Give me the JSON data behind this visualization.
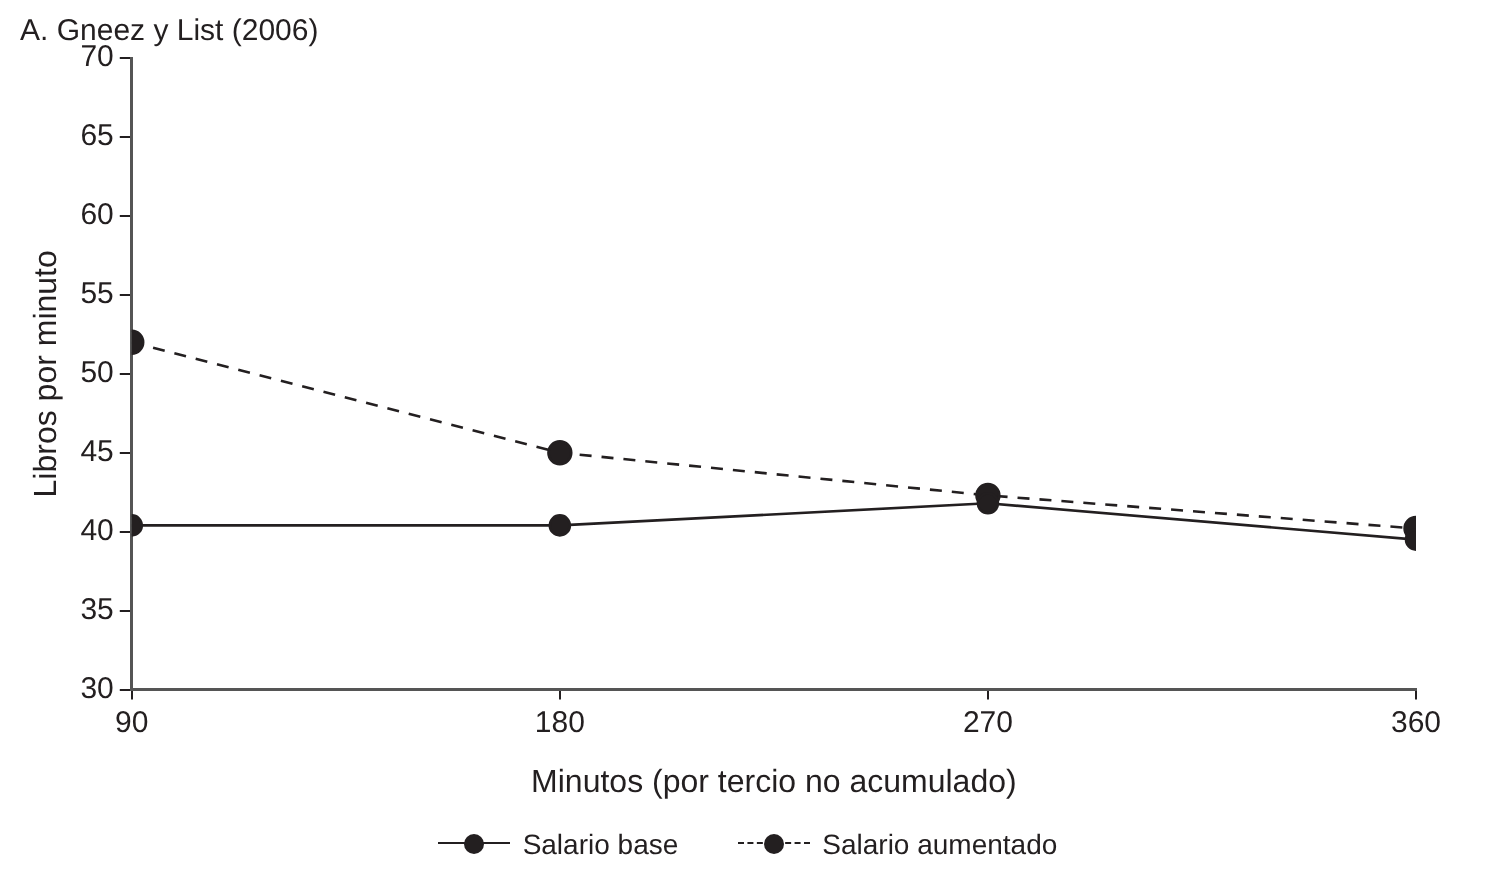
{
  "chart_data": {
    "type": "line",
    "title": "A. Gneez y List (2006)",
    "xlabel": "Minutos (por tercio no acumulado)",
    "ylabel": "Libros por minuto",
    "x": [
      90,
      180,
      270,
      360
    ],
    "xlim": [
      90,
      360
    ],
    "xticks": [
      90,
      180,
      270,
      360
    ],
    "ylim": [
      30,
      70
    ],
    "yticks": [
      30,
      35,
      40,
      45,
      50,
      55,
      60,
      65,
      70
    ],
    "series": [
      {
        "name": "Salario base",
        "color": "#231f20",
        "values": [
          40.4,
          40.4,
          41.8,
          39.5
        ],
        "line_style": "solid"
      },
      {
        "name": "Salario aumentado",
        "color": "#231f20",
        "values": [
          52,
          45,
          42.3,
          40.2
        ],
        "line_style": "dashed"
      }
    ],
    "marker": "circle",
    "grid": false,
    "legend": "bottom"
  }
}
